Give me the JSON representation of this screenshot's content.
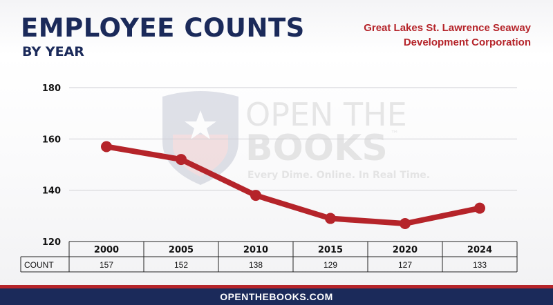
{
  "header": {
    "title": "EMPLOYEE COUNTS",
    "subtitle": "BY YEAR",
    "org_line1": "Great Lakes St. Lawrence Seaway",
    "org_line2": "Development Corporation"
  },
  "watermark": {
    "line1": "OPEN THE",
    "line2": "BOOKS",
    "tm": "™",
    "tagline": "Every Dime. Online. In Real Time."
  },
  "chart_data": {
    "type": "line",
    "categories": [
      "2000",
      "2005",
      "2010",
      "2015",
      "2020",
      "2024"
    ],
    "series": [
      {
        "values": [
          157,
          152,
          138,
          129,
          127,
          133
        ]
      }
    ],
    "y_ticks": [
      120,
      140,
      160,
      180
    ],
    "ylim": [
      120,
      180
    ],
    "grid": true,
    "table_row_label": "COUNT",
    "line_color": "#b5242a"
  },
  "footer": {
    "url": "OPENTHEBOOKS.COM"
  },
  "colors": {
    "navy": "#1b2a5a",
    "red": "#b5242a"
  }
}
